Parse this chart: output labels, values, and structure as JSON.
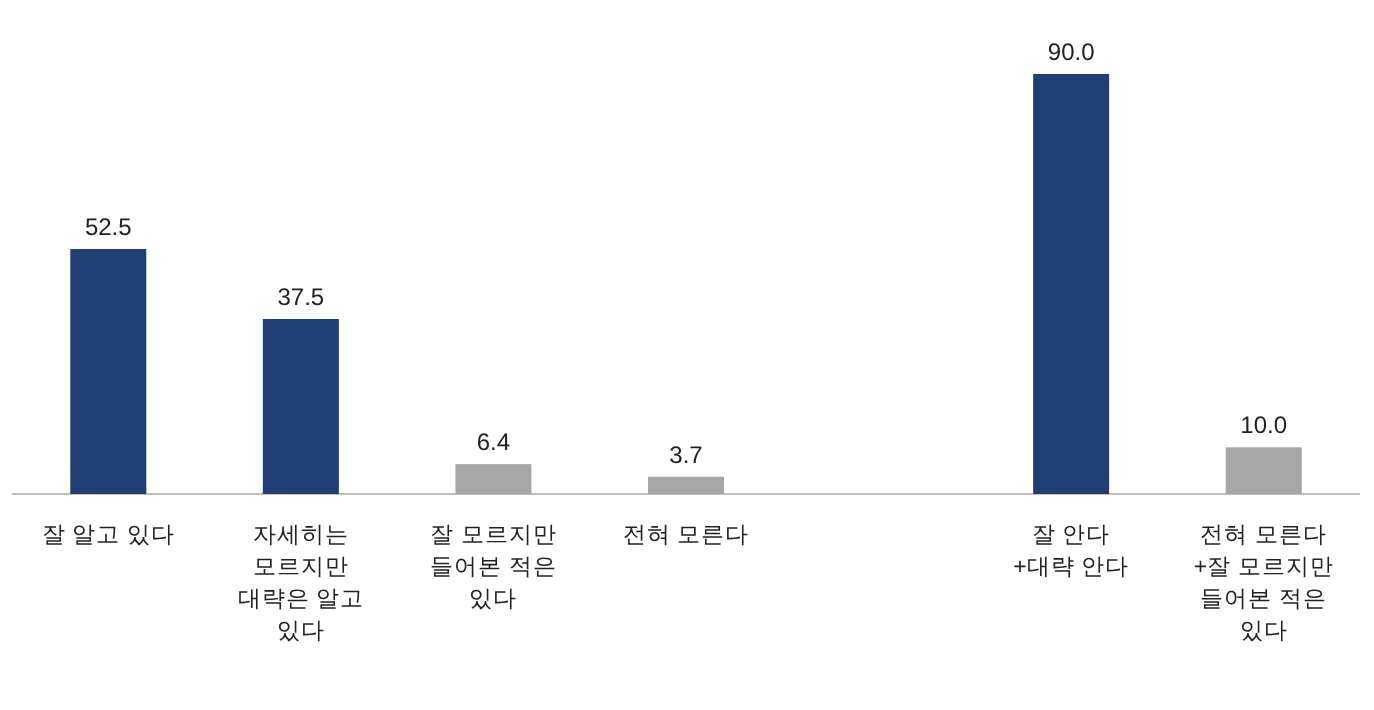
{
  "chart_data": {
    "type": "bar",
    "categories": [
      "잘 알고 있다",
      "자세히는 모르지만 대략은 알고 있다",
      "잘 모르지만 들어본 적은 있다",
      "전혀 모른다",
      null,
      "잘 안다 +대략 안다",
      "전혀 모른다 +잘 모르지만 들어본 적은 있다"
    ],
    "values": [
      52.5,
      37.5,
      6.4,
      3.7,
      null,
      90.0,
      10.0
    ],
    "colors": [
      "#1f3e74",
      "#1f3e74",
      "#a6a6a6",
      "#a6a6a6",
      null,
      "#1f3e74",
      "#a6a6a6"
    ],
    "value_labels": [
      "52.5",
      "37.5",
      "6.4",
      "3.7",
      null,
      "90.0",
      "10.0"
    ]
  }
}
